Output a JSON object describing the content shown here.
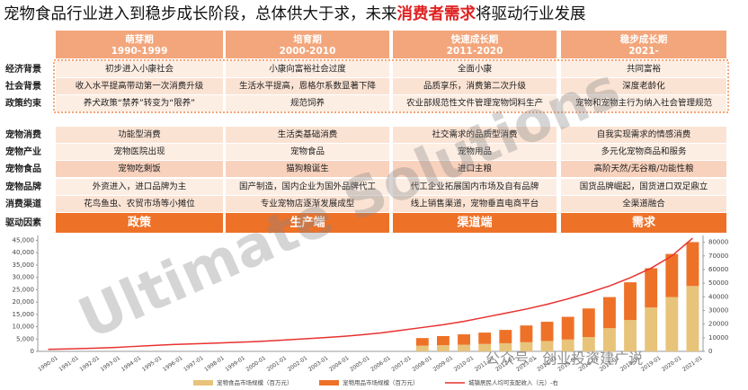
{
  "title_parts": [
    "宠物食品行业进入到稳步成长阶段，总体供大于求，未来",
    "消费者需求",
    "将驱动行业发展"
  ],
  "watermarks": [
    "Ultimate Solutions",
    "公众号 · 创业投资建广说"
  ],
  "timeline": {
    "row_labels": [
      "经济背景",
      "社会背景",
      "政策约束",
      "宠物消费",
      "宠物产业",
      "宠物食品",
      "宠物品牌",
      "消费渠道",
      "驱动因素"
    ],
    "stages": [
      {
        "name": "萌芽期",
        "years": "1990-1999",
        "cells": [
          "初步进入小康社会",
          "收入水平提高带动第一次消费升级",
          "养犬政策“禁养”转变为“限养”",
          "功能型消费",
          "宠物医院出现",
          "宠物吃剩饭",
          "外资进入，进口品牌为主",
          "花鸟鱼虫、农贸市场等小摊位",
          "政策"
        ]
      },
      {
        "name": "培育期",
        "years": "2000-2010",
        "cells": [
          "小康向富裕社会过度",
          "生活水平提高，恩格尔系数显著下降",
          "规范饲养",
          "生活类基础消费",
          "宠物食品",
          "猫狗粮诞生",
          "国产制造，国内企业为国外品牌代工",
          "专业宠物店逐渐发展成型",
          "生产端"
        ]
      },
      {
        "name": "快速成长期",
        "years": "2011-2020",
        "cells": [
          "全面小康",
          "品质享乐，消费第二次升级",
          "农业部规范性文件管理宠物饲料生产",
          "社交需求的品质型消费",
          "宠物用品",
          "进口主粮",
          "代工企业拓展国内市场及自有品牌",
          "线上销售渠道，宠物垂直电商平台",
          "渠道端"
        ]
      },
      {
        "name": "稳步成长期",
        "years": "2021-",
        "cells": [
          "共同富裕",
          "深度老龄化",
          "宠物和宠物主行为纳入社会管理规范",
          "自我实现需求的情感消费",
          "多元化宠物商品和服务",
          "高阶天然/无谷粮/功能性粮",
          "国货品牌崛起，国货进口双足鼎立",
          "全渠道融合",
          "需求"
        ]
      }
    ]
  },
  "chart_data": {
    "type": "bar_line",
    "stacked": true,
    "categories": [
      "1990-01",
      "1991-01",
      "1992-01",
      "1993-01",
      "1994-01",
      "1995-01",
      "1996-01",
      "1997-01",
      "1998-01",
      "1999-01",
      "2000-01",
      "2001-01",
      "2002-01",
      "2003-01",
      "2004-01",
      "2005-01",
      "2006-01",
      "2007-01",
      "2008-01",
      "2009-01",
      "2010-01",
      "2011-01",
      "2012-01",
      "2013-01",
      "2014-01",
      "2015-01",
      "2016-01",
      "2017-01",
      "2018-01",
      "2019-01",
      "2020-01",
      "2021-01"
    ],
    "series": [
      {
        "name": "宠物食品市场规模（百万元）",
        "color": "#e8c37a",
        "type": "bar",
        "values": [
          null,
          null,
          null,
          null,
          null,
          null,
          null,
          null,
          null,
          null,
          null,
          null,
          null,
          null,
          null,
          null,
          null,
          null,
          2300,
          2500,
          2700,
          3000,
          3300,
          3700,
          4200,
          4800,
          5800,
          9400,
          12700,
          17800,
          22000,
          26500
        ]
      },
      {
        "name": "宠物用品市场规模（百万元）",
        "color": "#ee7128",
        "type": "bar",
        "values": [
          null,
          null,
          null,
          null,
          null,
          null,
          null,
          null,
          null,
          null,
          null,
          null,
          null,
          null,
          null,
          null,
          null,
          null,
          3100,
          3700,
          4200,
          4600,
          5400,
          6800,
          7800,
          9200,
          11600,
          12600,
          15300,
          15900,
          17500,
          17800
        ]
      },
      {
        "name": "城镇居民人均可支配收入（元）-右",
        "color": "#e8322f",
        "type": "line",
        "axis": "y2",
        "values": [
          1500,
          1800,
          2200,
          2700,
          3500,
          4300,
          5000,
          5500,
          6000,
          6600,
          7200,
          8000,
          8900,
          9800,
          10800,
          12000,
          13500,
          15500,
          17500,
          19500,
          22000,
          25000,
          28000,
          31000,
          34500,
          38500,
          43000,
          48000,
          54000,
          61000,
          70000,
          83000
        ]
      }
    ],
    "ylim": [
      0,
      47000
    ],
    "yticks": [
      0,
      {
        "value": 5000,
        "label": "5,000"
      },
      {
        "value": 10000,
        "label": "10,000"
      },
      {
        "value": 15000,
        "label": "15,000"
      },
      {
        "value": 20000,
        "label": "20,000"
      },
      {
        "value": 25000,
        "label": "25,000"
      },
      {
        "value": 30000,
        "label": "30,000"
      },
      {
        "value": 35000,
        "label": "35,000"
      },
      {
        "value": 40000,
        "label": "40,000"
      },
      {
        "value": 45000,
        "label": "45,000"
      }
    ],
    "y2lim": [
      0,
      85000
    ],
    "y2ticks": [
      0,
      10000,
      20000,
      30000,
      40000,
      50000,
      60000,
      70000,
      80000
    ],
    "legend": "bottom"
  }
}
